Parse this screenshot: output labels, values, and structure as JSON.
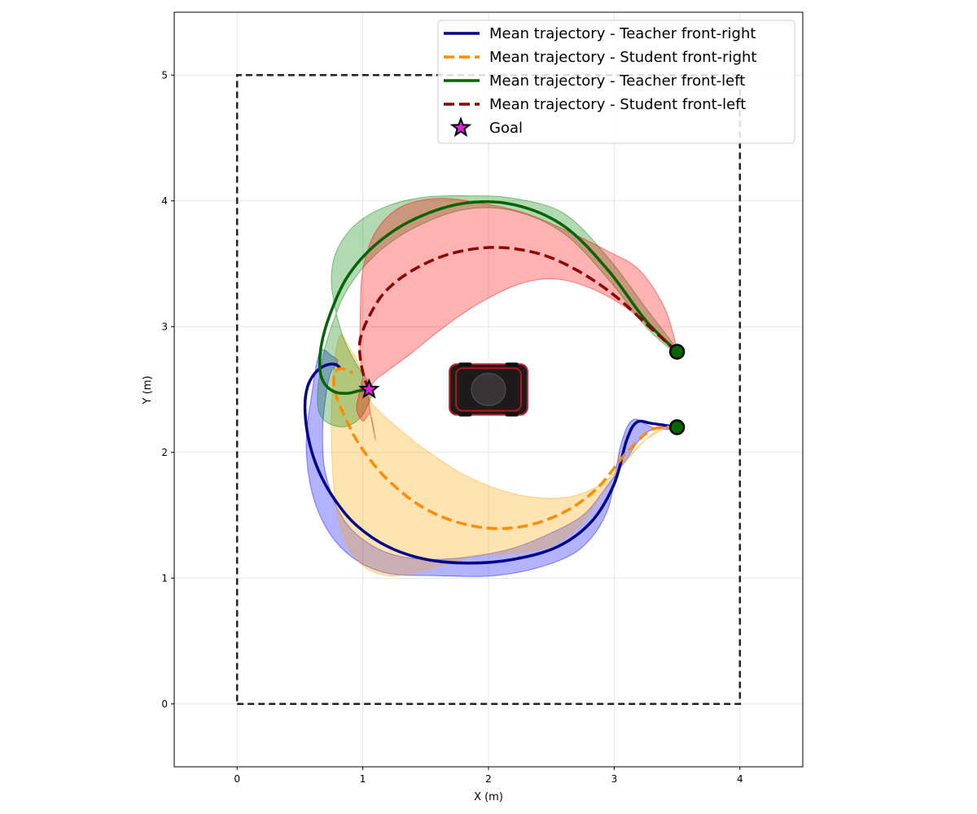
{
  "chart_data": {
    "type": "line",
    "xlabel": "X (m)",
    "ylabel": "Y (m)",
    "xlim": [
      -0.5,
      4.5
    ],
    "ylim": [
      -0.5,
      5.5
    ],
    "xticks": [
      0,
      1,
      2,
      3,
      4
    ],
    "yticks": [
      0,
      1,
      2,
      3,
      4,
      5
    ],
    "grid": true,
    "legend_position": "top-right",
    "boundary": {
      "x": [
        0,
        4,
        4,
        0,
        0
      ],
      "y": [
        0,
        0,
        5,
        5,
        0
      ],
      "color": "#222222",
      "style": "dashed"
    },
    "obstacle": {
      "name": "car",
      "x": 2.0,
      "y": 2.5,
      "length": 0.62,
      "width": 0.26
    },
    "start_points": [
      {
        "x": 3.5,
        "y": 2.2
      },
      {
        "x": 3.5,
        "y": 2.8
      }
    ],
    "goal": {
      "label": "Goal",
      "x": 1.05,
      "y": 2.5,
      "color": "#e020e0"
    },
    "series": [
      {
        "name": "Mean trajectory - Teacher front-right",
        "color": "#00008b",
        "style": "solid",
        "x": [
          3.5,
          3.3,
          3.18,
          3.1,
          3.0,
          2.82,
          2.55,
          2.2,
          1.85,
          1.5,
          1.2,
          0.95,
          0.78,
          0.65,
          0.57,
          0.54,
          0.56,
          0.62,
          0.7,
          0.78,
          0.82
        ],
        "y": [
          2.2,
          2.23,
          2.24,
          2.1,
          1.75,
          1.45,
          1.25,
          1.15,
          1.12,
          1.15,
          1.25,
          1.42,
          1.62,
          1.85,
          2.1,
          2.35,
          2.52,
          2.63,
          2.69,
          2.7,
          2.67
        ]
      },
      {
        "name": "Mean trajectory - Student front-right",
        "color": "#ff8c00",
        "style": "dashed",
        "x": [
          3.5,
          3.3,
          3.1,
          2.85,
          2.55,
          2.2,
          1.85,
          1.5,
          1.2,
          0.98,
          0.85,
          0.78,
          0.77,
          0.8,
          0.86,
          0.92
        ],
        "y": [
          2.2,
          2.18,
          2.0,
          1.7,
          1.5,
          1.4,
          1.42,
          1.55,
          1.78,
          2.05,
          2.3,
          2.48,
          2.6,
          2.66,
          2.66,
          2.63
        ]
      },
      {
        "name": "Mean trajectory - Teacher front-left",
        "color": "#006400",
        "style": "solid",
        "x": [
          3.5,
          3.25,
          2.95,
          2.6,
          2.2,
          1.8,
          1.4,
          1.1,
          0.88,
          0.74,
          0.67,
          0.66,
          0.7,
          0.78,
          0.88,
          0.97,
          1.05
        ],
        "y": [
          2.8,
          3.05,
          3.45,
          3.8,
          3.97,
          3.98,
          3.85,
          3.65,
          3.4,
          3.1,
          2.85,
          2.65,
          2.54,
          2.48,
          2.47,
          2.49,
          2.5
        ]
      },
      {
        "name": "Mean trajectory - Student front-left",
        "color": "#8b0000",
        "style": "dashed",
        "x": [
          3.5,
          3.3,
          3.0,
          2.7,
          2.4,
          2.05,
          1.7,
          1.4,
          1.18,
          1.05,
          0.98,
          0.98,
          1.01,
          1.05
        ],
        "y": [
          2.8,
          2.98,
          3.25,
          3.45,
          3.58,
          3.63,
          3.58,
          3.45,
          3.28,
          3.08,
          2.9,
          2.75,
          2.6,
          2.5
        ]
      }
    ],
    "bands": [
      {
        "series": "Mean trajectory - Teacher front-right",
        "color": "#0000ff",
        "opacity": 0.3,
        "x": [
          3.5,
          3.3,
          3.15,
          3.05,
          2.95,
          2.75,
          2.45,
          2.05,
          1.6,
          1.15,
          0.82,
          0.62,
          0.55,
          0.6,
          0.66,
          0.75,
          0.8,
          0.74,
          0.7,
          0.68,
          0.7,
          0.8,
          0.95,
          1.2,
          1.5,
          1.85,
          2.2,
          2.5,
          2.75,
          2.92,
          3.08,
          3.2,
          3.3,
          3.5
        ],
        "y": [
          2.18,
          2.2,
          2.26,
          2.05,
          1.55,
          1.25,
          1.1,
          1.02,
          1.02,
          1.05,
          1.25,
          1.6,
          2.05,
          2.5,
          2.8,
          2.77,
          2.72,
          2.62,
          2.4,
          2.15,
          1.85,
          1.55,
          1.35,
          1.2,
          1.15,
          1.17,
          1.24,
          1.36,
          1.5,
          1.7,
          1.92,
          2.1,
          2.18,
          2.22
        ]
      },
      {
        "series": "Mean trajectory - Student front-right",
        "color": "#ffa500",
        "opacity": 0.3,
        "x": [
          3.5,
          3.25,
          3.0,
          2.75,
          2.5,
          2.2,
          1.9,
          1.55,
          1.2,
          0.95,
          0.8,
          0.75,
          0.77,
          0.82,
          0.9,
          0.97,
          1.0,
          1.1,
          1.25,
          1.5,
          1.85,
          2.25,
          2.6,
          2.85,
          3.05,
          3.2,
          3.35,
          3.5
        ],
        "y": [
          2.22,
          2.1,
          1.82,
          1.45,
          1.26,
          1.2,
          1.18,
          1.08,
          1.02,
          1.15,
          1.5,
          2.1,
          2.65,
          2.93,
          2.82,
          2.7,
          2.52,
          2.36,
          2.22,
          2.02,
          1.8,
          1.66,
          1.64,
          1.72,
          1.88,
          2.05,
          2.18,
          2.2
        ]
      },
      {
        "series": "Mean trajectory - Teacher front-left",
        "color": "#008000",
        "opacity": 0.3,
        "x": [
          3.5,
          3.25,
          2.95,
          2.6,
          2.2,
          1.8,
          1.4,
          1.1,
          0.88,
          0.75,
          0.67,
          0.64,
          0.66,
          0.75,
          0.88,
          1.0,
          1.08,
          1.02,
          0.95,
          0.85,
          0.78,
          0.75,
          0.8,
          0.95,
          1.2,
          1.5,
          1.85,
          2.2,
          2.6,
          2.95,
          3.25,
          3.5
        ],
        "y": [
          2.78,
          3.0,
          3.38,
          3.74,
          3.92,
          3.93,
          3.78,
          3.57,
          3.3,
          3.0,
          2.7,
          2.45,
          2.3,
          2.22,
          2.21,
          2.3,
          2.5,
          2.6,
          2.7,
          2.9,
          3.15,
          3.4,
          3.62,
          3.82,
          3.96,
          4.03,
          4.04,
          4.02,
          3.9,
          3.55,
          3.15,
          2.82
        ]
      },
      {
        "series": "Mean trajectory - Student front-left",
        "color": "#ff0000",
        "opacity": 0.3,
        "x": [
          3.5,
          3.3,
          3.05,
          2.75,
          2.5,
          2.25,
          1.95,
          1.65,
          1.4,
          1.2,
          1.08,
          1.05,
          1.1,
          1.06,
          1.0,
          0.95,
          0.98,
          1.0,
          0.98,
          0.98,
          1.0,
          1.1,
          1.3,
          1.6,
          1.95,
          2.3,
          2.65,
          2.95,
          3.2,
          3.4,
          3.5
        ],
        "y": [
          2.78,
          2.98,
          3.18,
          3.33,
          3.38,
          3.34,
          3.2,
          3.0,
          2.8,
          2.65,
          2.55,
          2.4,
          2.1,
          2.3,
          2.25,
          2.35,
          2.5,
          2.62,
          2.75,
          3.1,
          3.45,
          3.75,
          3.95,
          4.02,
          3.98,
          3.9,
          3.75,
          3.6,
          3.45,
          3.15,
          2.82
        ]
      }
    ]
  }
}
